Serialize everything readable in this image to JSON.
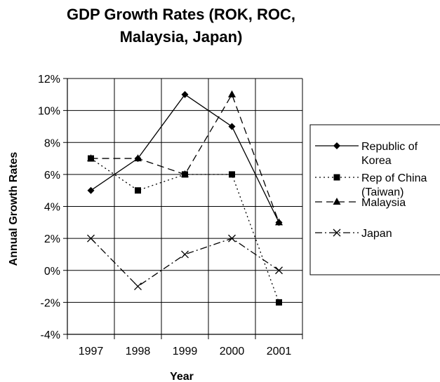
{
  "chart_data": {
    "type": "line",
    "title_line1": "GDP Growth Rates (ROK, ROC,",
    "title_line2": "Malaysia, Japan)",
    "xlabel": "Year",
    "ylabel": "Annual Growth Rates",
    "categories": [
      "1997",
      "1998",
      "1999",
      "2000",
      "2001"
    ],
    "ylim": [
      -4,
      12
    ],
    "ytick_values": [
      -4,
      -2,
      0,
      2,
      4,
      6,
      8,
      10,
      12
    ],
    "ytick_labels": [
      "-4%",
      "-2%",
      "0%",
      "2%",
      "4%",
      "6%",
      "8%",
      "10%",
      "12%"
    ],
    "grid": true,
    "legend_position": "right",
    "series": [
      {
        "name": "Republic of Korea",
        "legend_lines": [
          "Republic of",
          "Korea"
        ],
        "values": [
          5,
          7,
          11,
          9,
          3
        ],
        "marker": "diamond",
        "dash": "solid",
        "color": "#000000"
      },
      {
        "name": "Rep of China (Taiwan)",
        "legend_lines": [
          "Rep of China",
          "(Taiwan)"
        ],
        "values": [
          7,
          5,
          6,
          6,
          -2
        ],
        "marker": "square",
        "dash": "dotted",
        "color": "#000000"
      },
      {
        "name": "Malaysia",
        "legend_lines": [
          "Malaysia"
        ],
        "values": [
          7,
          7,
          6,
          11,
          3
        ],
        "marker": "triangle",
        "dash": "dashed",
        "color": "#000000"
      },
      {
        "name": "Japan",
        "legend_lines": [
          "Japan"
        ],
        "values": [
          2,
          -1,
          1,
          2,
          0
        ],
        "marker": "x",
        "dash": "dashdot",
        "color": "#000000"
      }
    ]
  }
}
